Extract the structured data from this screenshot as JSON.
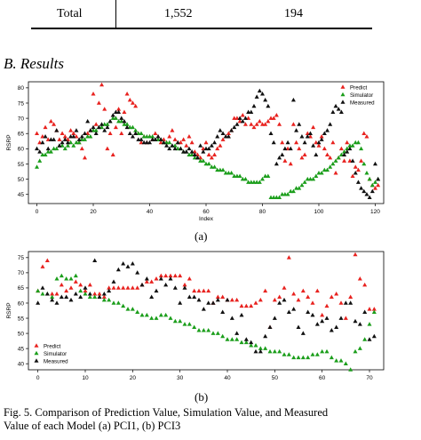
{
  "table": {
    "label": "Total",
    "col1": "1,552",
    "col2": "194"
  },
  "section": {
    "heading": "B.  Results"
  },
  "chart_data": [
    {
      "type": "scatter",
      "id": "a",
      "xlabel": "Index",
      "ylabel": "RSRP",
      "xlim": [
        -3,
        123
      ],
      "ylim": [
        42,
        82
      ],
      "xticks": [
        0,
        20,
        40,
        60,
        80,
        100,
        120
      ],
      "yticks": [
        45,
        50,
        55,
        60,
        65,
        70,
        75,
        80
      ],
      "legend_position": "top-right",
      "sub_label": "(a)",
      "series": [
        {
          "name": "Predict",
          "color": "#e8221f",
          "y": [
            65,
            62,
            64,
            67,
            63,
            69,
            68,
            66,
            63,
            65,
            64,
            63,
            66,
            65,
            64,
            62,
            60,
            57,
            65,
            66,
            78,
            68,
            75,
            81,
            73,
            60,
            65,
            58,
            67,
            73,
            65,
            72,
            78,
            76,
            75,
            74,
            65,
            62,
            64,
            62,
            64,
            63,
            65,
            64,
            62,
            63,
            62,
            64,
            66,
            63,
            62,
            62,
            63,
            61,
            64,
            62,
            59,
            58,
            57,
            60,
            62,
            58,
            57,
            58,
            60,
            61,
            63,
            64,
            65,
            66,
            70,
            70,
            69,
            71,
            68,
            70,
            68,
            67,
            68,
            69,
            68,
            68,
            69,
            70,
            70,
            71,
            68,
            62,
            56,
            60,
            55,
            68,
            62,
            60,
            57,
            58,
            65,
            64,
            67,
            62,
            61,
            64,
            60,
            58,
            57,
            62,
            52,
            57,
            60,
            56,
            62,
            56,
            51,
            54,
            53,
            56,
            65,
            64,
            50,
            48,
            47,
            48
          ]
        },
        {
          "name": "Simulator",
          "color": "#1b9e1b",
          "y": [
            54,
            56,
            58,
            58,
            59,
            59,
            60,
            60,
            61,
            61,
            60,
            61,
            62,
            61,
            62,
            62,
            63,
            63,
            64,
            64,
            66,
            66,
            67,
            67,
            68,
            68,
            69,
            70,
            70,
            69,
            69,
            68,
            68,
            67,
            67,
            66,
            65,
            65,
            64,
            64,
            64,
            64,
            63,
            63,
            63,
            62,
            62,
            62,
            61,
            61,
            60,
            60,
            59,
            59,
            58,
            58,
            57,
            57,
            56,
            56,
            55,
            55,
            54,
            54,
            53,
            53,
            53,
            52,
            52,
            52,
            51,
            51,
            51,
            50,
            50,
            49,
            49,
            49,
            49,
            49,
            50,
            51,
            51,
            44,
            44,
            44,
            44,
            45,
            45,
            45,
            46,
            46,
            47,
            47,
            48,
            49,
            50,
            50,
            50,
            51,
            52,
            52,
            53,
            53,
            54,
            55,
            56,
            57,
            58,
            59,
            60,
            61,
            61,
            62,
            62,
            60,
            55,
            52,
            50,
            48,
            49,
            50
          ]
        },
        {
          "name": "Measured",
          "color": "#111111",
          "y": [
            60,
            59,
            62,
            64,
            60,
            63,
            63,
            66,
            61,
            62,
            63,
            62,
            64,
            64,
            66,
            63,
            64,
            65,
            69,
            66,
            67,
            65,
            67,
            68,
            66,
            67,
            69,
            71,
            72,
            72,
            70,
            69,
            67,
            65,
            64,
            65,
            63,
            63,
            62,
            62,
            62,
            63,
            63,
            64,
            63,
            62,
            61,
            60,
            61,
            60,
            62,
            60,
            59,
            59,
            60,
            59,
            58,
            57,
            61,
            59,
            60,
            60,
            61,
            62,
            64,
            66,
            65,
            64,
            64,
            66,
            67,
            68,
            70,
            69,
            70,
            72,
            72,
            74,
            77,
            79,
            78,
            76,
            74,
            65,
            62,
            55,
            57,
            58,
            60,
            62,
            60,
            76,
            66,
            68,
            64,
            62,
            64,
            65,
            61,
            58,
            62,
            63,
            65,
            66,
            68,
            72,
            74,
            73,
            72,
            58,
            59,
            60,
            56,
            52,
            49,
            47,
            46,
            45,
            44,
            46,
            55,
            50
          ]
        }
      ]
    },
    {
      "type": "scatter",
      "id": "b",
      "xlabel": "",
      "ylabel": "RSRP",
      "xlim": [
        -2,
        73
      ],
      "ylim": [
        38,
        77
      ],
      "xticks": [
        0,
        10,
        20,
        30,
        40,
        50,
        60,
        70
      ],
      "yticks": [
        40,
        45,
        50,
        55,
        60,
        65,
        70,
        75
      ],
      "legend_position": "bottom-left",
      "sub_label": "(b)",
      "series": [
        {
          "name": "Predict",
          "color": "#e8221f",
          "y": [
            64,
            72,
            74,
            63,
            63,
            66,
            64,
            65,
            67,
            66,
            64,
            66,
            63,
            63,
            62,
            65,
            65,
            65,
            65,
            65,
            65,
            65,
            66,
            67,
            67,
            68,
            69,
            69,
            69,
            69,
            69,
            66,
            68,
            64,
            64,
            64,
            64,
            60,
            62,
            62,
            61,
            61,
            61,
            59,
            59,
            59,
            60,
            61,
            64,
            52,
            61,
            62,
            65,
            75,
            63,
            61,
            64,
            62,
            60,
            64,
            56,
            59,
            62,
            63,
            60,
            55,
            62,
            76,
            68,
            66,
            58,
            58
          ]
        },
        {
          "name": "Simulator",
          "color": "#1b9e1b",
          "y": [
            64,
            63,
            63,
            62,
            68,
            69,
            68,
            68,
            69,
            64,
            63,
            62,
            62,
            62,
            61,
            61,
            60,
            60,
            59,
            58,
            58,
            57,
            56,
            56,
            55,
            55,
            56,
            56,
            55,
            54,
            54,
            53,
            53,
            52,
            51,
            51,
            51,
            50,
            50,
            49,
            48,
            48,
            48,
            47,
            47,
            46,
            46,
            45,
            45,
            44,
            44,
            44,
            43,
            43,
            42,
            42,
            42,
            42,
            43,
            43,
            44,
            44,
            42,
            41,
            41,
            40,
            38,
            44,
            45,
            48,
            53,
            57
          ]
        },
        {
          "name": "Measured",
          "color": "#111111",
          "y": [
            60,
            65,
            63,
            61,
            60,
            62,
            62,
            61,
            63,
            62,
            65,
            63,
            74,
            62,
            63,
            64,
            67,
            71,
            73,
            72,
            73,
            70,
            66,
            68,
            62,
            64,
            68,
            66,
            68,
            65,
            60,
            65,
            62,
            62,
            61,
            58,
            60,
            60,
            61,
            57,
            61,
            55,
            50,
            56,
            48,
            47,
            44,
            44,
            49,
            52,
            55,
            60,
            61,
            57,
            58,
            52,
            50,
            57,
            56,
            53,
            54,
            55,
            51,
            52,
            55,
            60,
            60,
            54,
            53,
            57,
            48,
            49
          ]
        }
      ]
    }
  ],
  "figure_caption": {
    "line1": "Fig. 5.   Comparison of Prediction Value, Simulation Value, and Measured",
    "line2": "Value of each Model (a) PCI1, (b) PCI3"
  }
}
